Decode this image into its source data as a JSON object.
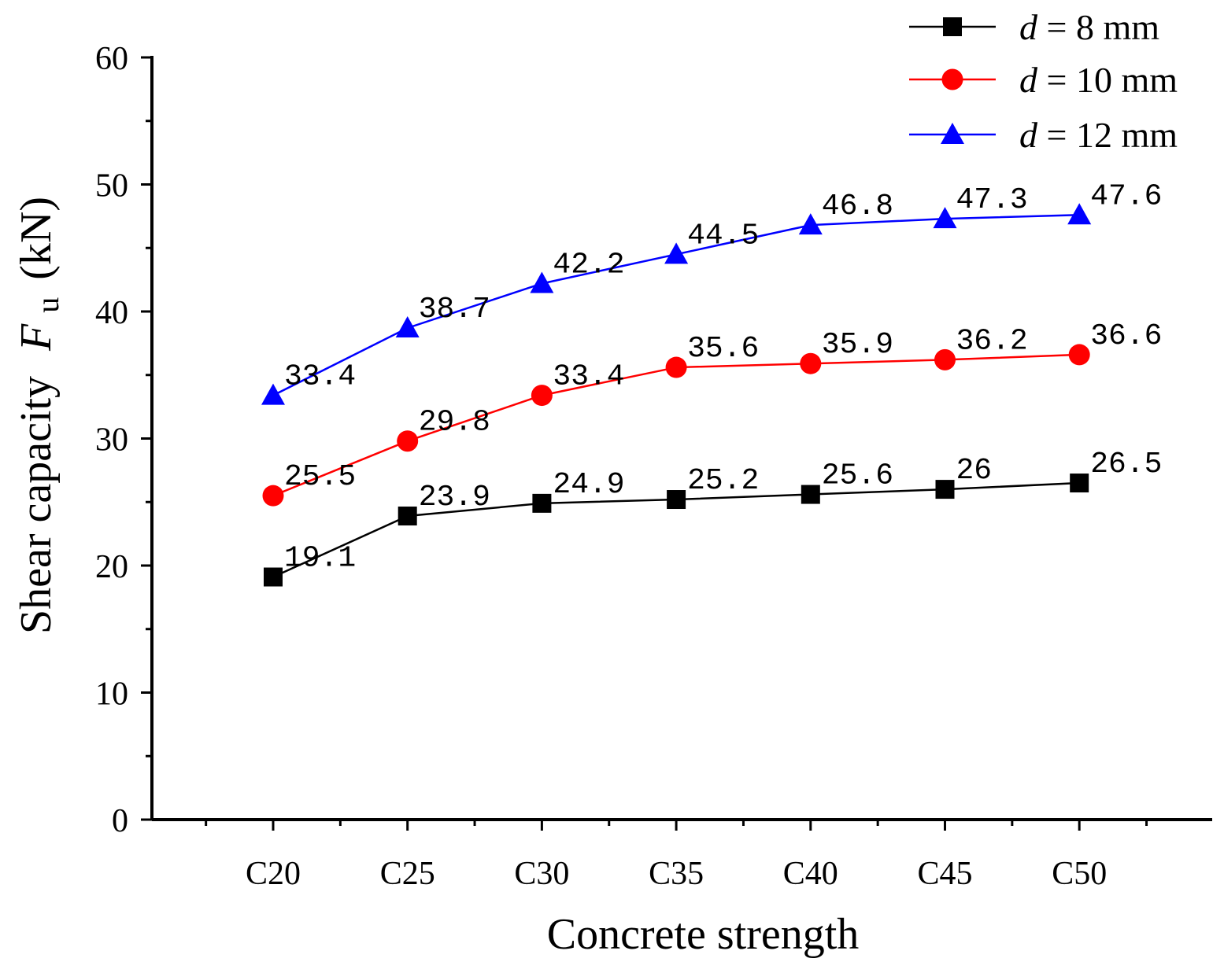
{
  "chart_data": {
    "type": "line",
    "title": "",
    "xlabel": "Concrete strength",
    "ylabel": {
      "prefix": "Shear capacity",
      "symbol": "F",
      "subscript": "u",
      "unit": "(kN)"
    },
    "categories": [
      "C20",
      "C25",
      "C30",
      "C35",
      "C40",
      "C45",
      "C50"
    ],
    "ylim": [
      0,
      60
    ],
    "yticks": [
      "0",
      "10",
      "20",
      "30",
      "40",
      "50",
      "60"
    ],
    "grid": false,
    "legend_position": "top-right",
    "series": [
      {
        "name": "d = 8 mm",
        "legend": {
          "var": "d",
          "rest": " = 8 mm"
        },
        "color": "#000000",
        "marker": "square",
        "values": [
          19.1,
          23.9,
          24.9,
          25.2,
          25.6,
          26,
          26.5
        ],
        "labels": [
          "19.1",
          "23.9",
          "24.9",
          "25.2",
          "25.6",
          "26",
          "26.5"
        ]
      },
      {
        "name": "d = 10 mm",
        "legend": {
          "var": "d",
          "rest": " = 10 mm"
        },
        "color": "#ff0000",
        "marker": "circle",
        "values": [
          25.5,
          29.8,
          33.4,
          35.6,
          35.9,
          36.2,
          36.6
        ],
        "labels": [
          "25.5",
          "29.8",
          "33.4",
          "35.6",
          "35.9",
          "36.2",
          "36.6"
        ]
      },
      {
        "name": "d = 12 mm",
        "legend": {
          "var": "d",
          "rest": " = 12 mm"
        },
        "color": "#0000ff",
        "marker": "triangle",
        "values": [
          33.4,
          38.7,
          42.2,
          44.5,
          46.8,
          47.3,
          47.6
        ],
        "labels": [
          "33.4",
          "38.7",
          "42.2",
          "44.5",
          "46.8",
          "47.3",
          "47.6"
        ]
      }
    ]
  }
}
